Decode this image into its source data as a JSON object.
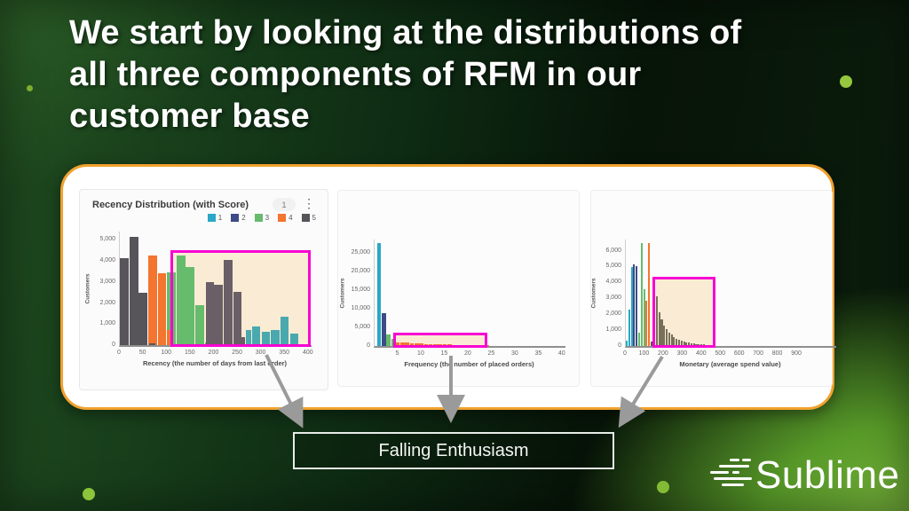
{
  "slide": {
    "title_lines": [
      "We start by looking at the distributions of",
      "all three components of RFM in our",
      "customer base"
    ],
    "callout_label": "Falling Enthusiasm",
    "brand": "Sublime"
  },
  "icons": {
    "kebab": "⋮"
  },
  "colors": {
    "score1": "#29a8c7",
    "score1r": "#49a9ae",
    "score2": "#3d4c85",
    "score2m": "#6a5f67",
    "score3": "#66bb6d",
    "score4": "#f4752f",
    "score5": "#57545a",
    "tail": "#77705a",
    "highlight_fill": "#faecd4",
    "highlight_border": "#f704d2",
    "panel_border": "#f1a12d",
    "accent_dot": "#8ec63b",
    "arrow": "#9a9a9a"
  },
  "chart_data": [
    {
      "type": "bar",
      "title": "Recency Distribution (with Score)",
      "badge": "1",
      "legend": [
        {
          "label": "1",
          "color": "score1"
        },
        {
          "label": "2",
          "color": "score2"
        },
        {
          "label": "3",
          "color": "score3"
        },
        {
          "label": "4",
          "color": "score4"
        },
        {
          "label": "5",
          "color": "score5"
        }
      ],
      "xlabel": "Recency (the number of days from last order)",
      "ylabel": "Customers",
      "xmax": 406,
      "ymax": 5400,
      "yticks": [
        0,
        1000,
        2000,
        3000,
        4000,
        5000
      ],
      "xticks": [
        0,
        50,
        100,
        150,
        200,
        250,
        300,
        350,
        400
      ],
      "bars": [
        {
          "x": 0,
          "w": 20,
          "v": 4150,
          "c": "score5"
        },
        {
          "x": 20,
          "w": 20,
          "v": 5150,
          "c": "score5"
        },
        {
          "x": 40,
          "w": 20,
          "v": 2480,
          "c": "score5"
        },
        {
          "x": 60,
          "w": 20,
          "v": 4250,
          "c": "score4"
        },
        {
          "x": 62,
          "w": 14,
          "v": 80,
          "c": "score5"
        },
        {
          "x": 80,
          "w": 20,
          "v": 3400,
          "c": "score4"
        },
        {
          "x": 100,
          "w": 20,
          "v": 3480,
          "c": "score3"
        },
        {
          "x": 100,
          "w": 9,
          "v": 700,
          "c": "score4"
        },
        {
          "x": 120,
          "w": 20,
          "v": 4250,
          "c": "score3"
        },
        {
          "x": 140,
          "w": 20,
          "v": 3700,
          "c": "score3"
        },
        {
          "x": 160,
          "w": 20,
          "v": 1920,
          "c": "score3"
        },
        {
          "x": 180,
          "w": 7,
          "v": 130,
          "c": "score3"
        },
        {
          "x": 182,
          "w": 18,
          "v": 3000,
          "c": "score2m"
        },
        {
          "x": 200,
          "w": 20,
          "v": 2850,
          "c": "score2m"
        },
        {
          "x": 220,
          "w": 20,
          "v": 4060,
          "c": "score2m"
        },
        {
          "x": 240,
          "w": 18,
          "v": 2550,
          "c": "score2m"
        },
        {
          "x": 258,
          "w": 9,
          "v": 400,
          "c": "score2m"
        },
        {
          "x": 267,
          "w": 12,
          "v": 700,
          "c": "score1r"
        },
        {
          "x": 280,
          "w": 19,
          "v": 880,
          "c": "score1r"
        },
        {
          "x": 300,
          "w": 19,
          "v": 650,
          "c": "score1r"
        },
        {
          "x": 320,
          "w": 19,
          "v": 720,
          "c": "score1r"
        },
        {
          "x": 340,
          "w": 19,
          "v": 1350,
          "c": "score1r"
        },
        {
          "x": 360,
          "w": 19,
          "v": 550,
          "c": "score1r"
        }
      ],
      "highlight": {
        "x0": 108,
        "x1": 404,
        "y": 4500
      }
    },
    {
      "type": "bar",
      "title": "",
      "xlabel": "Frequency (the number of placed orders)",
      "ylabel": "Customers",
      "xmax": 40.6,
      "ymax": 28500,
      "yticks": [
        0,
        5000,
        10000,
        15000,
        20000,
        25000
      ],
      "xticks": [
        5,
        10,
        15,
        20,
        25,
        30,
        35,
        40
      ],
      "bars": [
        {
          "x": 0.5,
          "w": 1,
          "v": 27500,
          "c": "score1"
        },
        {
          "x": 1.5,
          "w": 1,
          "v": 8700,
          "c": "score2"
        },
        {
          "x": 2.5,
          "w": 1,
          "v": 3200,
          "c": "score3"
        },
        {
          "x": 3.5,
          "w": 1,
          "v": 2000,
          "c": "score3"
        },
        {
          "x": 4.5,
          "w": 1,
          "v": 850,
          "c": "score4"
        },
        {
          "x": 5.5,
          "w": 1,
          "v": 1050,
          "c": "score4"
        },
        {
          "x": 6.5,
          "w": 1,
          "v": 950,
          "c": "score4"
        },
        {
          "x": 7.5,
          "w": 1,
          "v": 820,
          "c": "score4"
        },
        {
          "x": 8.5,
          "w": 1,
          "v": 720,
          "c": "score4"
        },
        {
          "x": 9.5,
          "w": 1,
          "v": 640,
          "c": "score4"
        },
        {
          "x": 10.5,
          "w": 1,
          "v": 580,
          "c": "score4"
        },
        {
          "x": 11.5,
          "w": 1,
          "v": 530,
          "c": "score4"
        },
        {
          "x": 12.5,
          "w": 1,
          "v": 480,
          "c": "score4"
        },
        {
          "x": 13.5,
          "w": 1,
          "v": 440,
          "c": "score4"
        },
        {
          "x": 14.5,
          "w": 1,
          "v": 410,
          "c": "score4"
        },
        {
          "x": 15.5,
          "w": 1,
          "v": 380,
          "c": "score4"
        },
        {
          "x": 16.5,
          "w": 1,
          "v": 350,
          "c": "score4"
        },
        {
          "x": 17.5,
          "w": 1,
          "v": 330,
          "c": "score4"
        },
        {
          "x": 18.5,
          "w": 1,
          "v": 310,
          "c": "score4"
        },
        {
          "x": 19.5,
          "w": 1,
          "v": 290,
          "c": "score4"
        },
        {
          "x": 20.5,
          "w": 1,
          "v": 270,
          "c": "score4"
        },
        {
          "x": 21.5,
          "w": 1,
          "v": 250,
          "c": "score4"
        },
        {
          "x": 22.5,
          "w": 1,
          "v": 230,
          "c": "score4"
        },
        {
          "x": 23.5,
          "w": 1,
          "v": 210,
          "c": "score4"
        }
      ],
      "highlight": {
        "x0": 3.9,
        "x1": 23.9,
        "y": 3550
      }
    },
    {
      "type": "bar",
      "title": "",
      "xlabel": "Monetary (average spend value)",
      "ylabel": "Customers",
      "xmax": 1105,
      "ymax": 6700,
      "yticks": [
        0,
        1000,
        2000,
        3000,
        4000,
        5000,
        6000
      ],
      "xticks": [
        0,
        100,
        200,
        300,
        400,
        500,
        600,
        700,
        800,
        900
      ],
      "bars": [
        {
          "x": 0,
          "w": 13,
          "v": 350,
          "c": "score1"
        },
        {
          "x": 13,
          "w": 13,
          "v": 2300,
          "c": "score1"
        },
        {
          "x": 26,
          "w": 13,
          "v": 4950,
          "c": "score1"
        },
        {
          "x": 39,
          "w": 13,
          "v": 5150,
          "c": "score2"
        },
        {
          "x": 52,
          "w": 13,
          "v": 5000,
          "c": "score2"
        },
        {
          "x": 65,
          "w": 13,
          "v": 850,
          "c": "score3"
        },
        {
          "x": 78,
          "w": 13,
          "v": 6500,
          "c": "score3"
        },
        {
          "x": 91,
          "w": 13,
          "v": 3550,
          "c": "score3"
        },
        {
          "x": 104,
          "w": 13,
          "v": 2850,
          "c": "score4"
        },
        {
          "x": 117,
          "w": 13,
          "v": 6450,
          "c": "score4"
        },
        {
          "x": 130,
          "w": 13,
          "v": 300,
          "c": "score5"
        },
        {
          "x": 145,
          "w": 13,
          "v": 3300,
          "c": "tail"
        },
        {
          "x": 158,
          "w": 13,
          "v": 3100,
          "c": "tail"
        },
        {
          "x": 171,
          "w": 13,
          "v": 2100,
          "c": "tail"
        },
        {
          "x": 184,
          "w": 13,
          "v": 1650,
          "c": "tail"
        },
        {
          "x": 197,
          "w": 13,
          "v": 1300,
          "c": "tail"
        },
        {
          "x": 210,
          "w": 13,
          "v": 1050,
          "c": "tail"
        },
        {
          "x": 223,
          "w": 13,
          "v": 850,
          "c": "tail"
        },
        {
          "x": 236,
          "w": 13,
          "v": 700,
          "c": "tail"
        },
        {
          "x": 249,
          "w": 13,
          "v": 570,
          "c": "tail"
        },
        {
          "x": 262,
          "w": 13,
          "v": 470,
          "c": "tail"
        },
        {
          "x": 275,
          "w": 13,
          "v": 390,
          "c": "tail"
        },
        {
          "x": 288,
          "w": 13,
          "v": 330,
          "c": "tail"
        },
        {
          "x": 301,
          "w": 13,
          "v": 280,
          "c": "tail"
        },
        {
          "x": 314,
          "w": 13,
          "v": 240,
          "c": "tail"
        },
        {
          "x": 327,
          "w": 13,
          "v": 200,
          "c": "tail"
        },
        {
          "x": 340,
          "w": 13,
          "v": 170,
          "c": "tail"
        },
        {
          "x": 353,
          "w": 13,
          "v": 150,
          "c": "tail"
        },
        {
          "x": 366,
          "w": 13,
          "v": 130,
          "c": "tail"
        },
        {
          "x": 379,
          "w": 13,
          "v": 115,
          "c": "tail"
        },
        {
          "x": 392,
          "w": 13,
          "v": 100,
          "c": "tail"
        },
        {
          "x": 405,
          "w": 13,
          "v": 90,
          "c": "tail"
        }
      ],
      "highlight": {
        "x0": 140,
        "x1": 470,
        "y": 4350
      }
    }
  ]
}
